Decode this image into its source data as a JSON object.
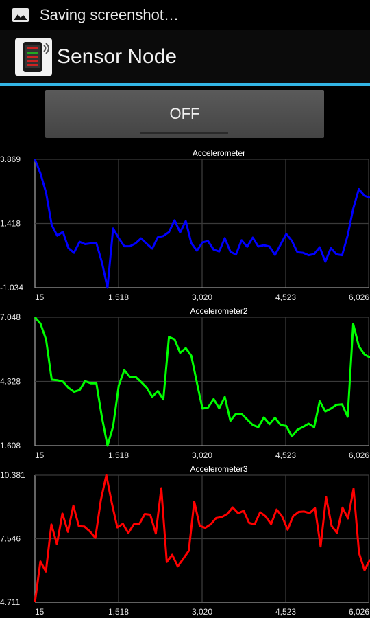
{
  "status_bar": {
    "notification_text": "Saving screenshot…",
    "icon": "image-icon"
  },
  "action_bar": {
    "app_title": "Sensor Node",
    "app_icon": "sensor-node-icon",
    "accent_color": "#33b5e5"
  },
  "toggle": {
    "label": "OFF"
  },
  "chart_data": [
    {
      "type": "line",
      "title": "Accelerometer",
      "color": "#0000ff",
      "x_ticks": [
        "15",
        "1,518",
        "3,020",
        "4,523",
        "6,026"
      ],
      "y_ticks": [
        "3.869",
        "1.418",
        "-1.034"
      ],
      "xlim": [
        15,
        6026
      ],
      "ylim": [
        -1.034,
        3.869
      ],
      "grid": true,
      "series": [
        {
          "values": [
            3.869,
            3.33,
            2.59,
            1.36,
            0.95,
            1.1,
            0.48,
            0.3,
            0.72,
            0.63,
            0.66,
            0.67,
            -0.07,
            -1.034,
            1.23,
            0.86,
            0.55,
            0.55,
            0.66,
            0.85,
            0.65,
            0.46,
            0.89,
            0.94,
            1.09,
            1.54,
            1.08,
            1.51,
            0.67,
            0.38,
            0.7,
            0.75,
            0.42,
            0.35,
            0.86,
            0.34,
            0.23,
            0.78,
            0.53,
            0.88,
            0.54,
            0.59,
            0.54,
            0.22,
            0.62,
            1.02,
            0.76,
            0.32,
            0.3,
            0.21,
            0.25,
            0.51,
            -0.04,
            0.48,
            0.24,
            0.21,
            0.96,
            1.98,
            2.73,
            2.48,
            2.4
          ]
        }
      ]
    },
    {
      "type": "line",
      "title": "Accelerometer2",
      "color": "#00ff00",
      "x_ticks": [
        "15",
        "1,518",
        "3,020",
        "4,523",
        "6,026"
      ],
      "y_ticks": [
        "7.048",
        "4.328",
        "1.608"
      ],
      "xlim": [
        15,
        6026
      ],
      "ylim": [
        1.608,
        7.048
      ],
      "grid": true,
      "series": [
        {
          "values": [
            7.048,
            6.78,
            6.1,
            4.4,
            4.38,
            4.32,
            4.06,
            3.89,
            3.96,
            4.34,
            4.25,
            4.25,
            2.8,
            1.608,
            2.42,
            4.15,
            4.81,
            4.52,
            4.53,
            4.31,
            4.07,
            3.68,
            3.92,
            3.57,
            6.21,
            6.11,
            5.54,
            5.74,
            5.42,
            4.27,
            3.18,
            3.22,
            3.58,
            3.19,
            3.67,
            2.66,
            2.96,
            2.95,
            2.72,
            2.48,
            2.39,
            2.8,
            2.52,
            2.79,
            2.48,
            2.44,
            2.0,
            2.28,
            2.4,
            2.54,
            2.39,
            3.49,
            3.06,
            3.18,
            3.34,
            3.36,
            2.83,
            6.76,
            5.82,
            5.47,
            5.34
          ]
        }
      ]
    },
    {
      "type": "line",
      "title": "Accelerometer3",
      "color": "#ff0000",
      "x_ticks": [
        "15",
        "1,518",
        "3,020",
        "4,523",
        "6,026"
      ],
      "y_ticks": [
        "10.381",
        "7.546",
        "4.711"
      ],
      "xlim": [
        15,
        6026
      ],
      "ylim": [
        4.711,
        10.381
      ],
      "grid": true,
      "series": [
        {
          "values": [
            4.711,
            6.53,
            6.08,
            8.18,
            7.3,
            8.67,
            7.86,
            9.02,
            8.1,
            8.09,
            7.87,
            7.58,
            9.27,
            10.381,
            9.14,
            8.05,
            8.21,
            7.8,
            8.19,
            8.2,
            8.65,
            8.62,
            7.78,
            9.8,
            6.51,
            6.83,
            6.31,
            6.65,
            7.0,
            9.2,
            8.12,
            8.03,
            8.19,
            8.47,
            8.51,
            8.65,
            8.94,
            8.68,
            8.79,
            8.25,
            8.19,
            8.73,
            8.54,
            8.2,
            8.85,
            8.54,
            7.95,
            8.55,
            8.74,
            8.76,
            8.69,
            8.91,
            7.2,
            9.41,
            8.12,
            7.8,
            8.93,
            8.45,
            9.78,
            6.91,
            6.14,
            6.62
          ]
        }
      ]
    }
  ]
}
